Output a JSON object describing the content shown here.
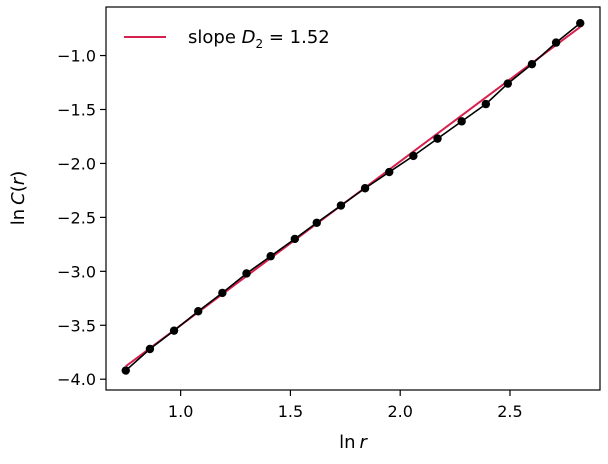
{
  "chart_data": {
    "type": "line",
    "xlabel_main": "ln",
    "xlabel_var": "r",
    "ylabel_main": "ln",
    "ylabel_func": "C",
    "ylabel_paren_open": "(",
    "ylabel_var": "r",
    "ylabel_paren_close": ")",
    "xlim": [
      0.66,
      2.91
    ],
    "ylim": [
      -4.1,
      -0.55
    ],
    "xticks": [
      1.0,
      1.5,
      2.0,
      2.5
    ],
    "xtick_labels": [
      "1.0",
      "1.5",
      "2.0",
      "2.5"
    ],
    "yticks": [
      -4.0,
      -3.5,
      -3.0,
      -2.5,
      -2.0,
      -1.5,
      -1.0
    ],
    "ytick_labels": [
      "−4.0",
      "−3.5",
      "−3.0",
      "−2.5",
      "−2.0",
      "−1.5",
      "−1.0"
    ],
    "grid": false,
    "legend_position": "top-left",
    "series": [
      {
        "kind": "data",
        "color": "#000000",
        "marker": "circle",
        "x": [
          0.75,
          0.86,
          0.97,
          1.08,
          1.19,
          1.3,
          1.41,
          1.52,
          1.62,
          1.73,
          1.84,
          1.95,
          2.06,
          2.17,
          2.28,
          2.39,
          2.49,
          2.6,
          2.71,
          2.82
        ],
        "y": [
          -3.92,
          -3.72,
          -3.55,
          -3.37,
          -3.2,
          -3.02,
          -2.86,
          -2.7,
          -2.55,
          -2.39,
          -2.23,
          -2.08,
          -1.93,
          -1.77,
          -1.61,
          -1.45,
          -1.26,
          -1.08,
          -0.88,
          -0.7
        ]
      },
      {
        "kind": "fit",
        "color": "#d6204e",
        "x": [
          0.75,
          2.82
        ],
        "y": [
          -3.88,
          -0.735
        ]
      }
    ],
    "legend": {
      "prefix": "slope ",
      "symbol": "D",
      "subscript": "2",
      "suffix": " = 1.52"
    }
  }
}
